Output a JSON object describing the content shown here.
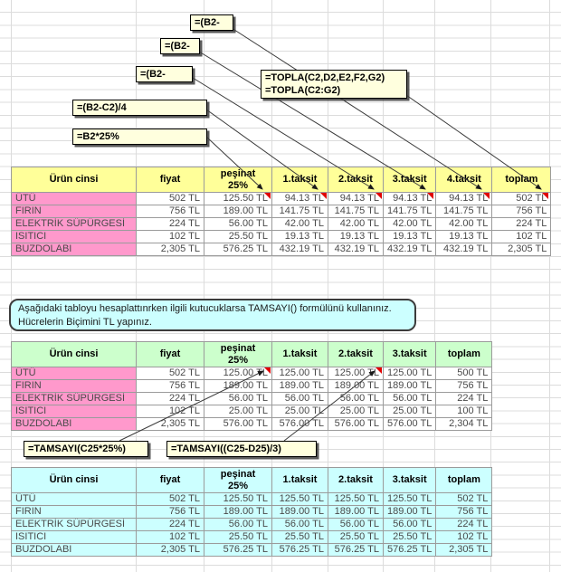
{
  "colors": {
    "table1_header_bg": "#FFFF99",
    "table2_header_bg": "#CCFFCC",
    "table3_bg": "#CCFFFF",
    "product_label_bg": "#FF99CC",
    "callout_bg": "#FFFFDE",
    "note_bg": "#CCFFFF",
    "comment_marker": "#E00000",
    "grid_line": "#DCDCDC"
  },
  "callouts": {
    "b2_minus_1": "=(B2-",
    "b2_minus_2": "=(B2-",
    "b2_minus_3": "=(B2-",
    "topla_line1": "=TOPLA(C2,D2,E2,F2,G2)",
    "topla_line2": "=TOPLA(C2:G2)",
    "taksit_formula": "=(B2-C2)/4",
    "pesinat_formula": "=B2*25%",
    "tamsayi_pesinat": "=TAMSAYI(C25*25%)",
    "tamsayi_taksit": "=TAMSAYI((C25-D25)/3)"
  },
  "note": {
    "text": "Aşağıdaki tabloyu hesaplattınrken ilgili kutucuklarsa TAMSAYI() formülünü kullanınız. Hücrelerin Biçimini TL yapınız."
  },
  "tables": [
    {
      "name": "installment-4-taksit",
      "header_bg": "#FFFF99",
      "label_bg": "#FF99CC",
      "body_bg": "#FFFFFF",
      "headers": [
        "Ürün cinsi",
        "fiyat",
        "peşinat\n25%",
        "1.taksit",
        "2.taksit",
        "3.taksit",
        "4.taksit",
        "toplam"
      ],
      "rows": [
        [
          "ÜTÜ",
          "502 TL",
          "125.50 TL",
          "94.13 TL",
          "94.13 TL",
          "94.13 TL",
          "94.13 TL",
          "502 TL"
        ],
        [
          "FIRIN",
          "756 TL",
          "189.00 TL",
          "141.75 TL",
          "141.75 TL",
          "141.75 TL",
          "141.75 TL",
          "756 TL"
        ],
        [
          "ELEKTRİK SÜPÜRGESİ",
          "224 TL",
          "56.00 TL",
          "42.00 TL",
          "42.00 TL",
          "42.00 TL",
          "42.00 TL",
          "224 TL"
        ],
        [
          "ISITICI",
          "102 TL",
          "25.50 TL",
          "19.13 TL",
          "19.13 TL",
          "19.13 TL",
          "19.13 TL",
          "102 TL"
        ],
        [
          "BUZDOLABI",
          "2,305 TL",
          "576.25 TL",
          "432.19 TL",
          "432.19 TL",
          "432.19 TL",
          "432.19 TL",
          "2,305 TL"
        ]
      ]
    },
    {
      "name": "installment-3-taksit-tamsayi",
      "header_bg": "#CCFFCC",
      "label_bg": "#FF99CC",
      "body_bg": "#FFFFFF",
      "headers": [
        "Ürün cinsi",
        "fiyat",
        "peşinat\n25%",
        "1.taksit",
        "2.taksit",
        "3.taksit",
        "toplam"
      ],
      "rows": [
        [
          "ÜTÜ",
          "502 TL",
          "125.00 TL",
          "125.00 TL",
          "125.00 TL",
          "125.00 TL",
          "500 TL"
        ],
        [
          "FIRIN",
          "756 TL",
          "189.00 TL",
          "189.00 TL",
          "189.00 TL",
          "189.00 TL",
          "756 TL"
        ],
        [
          "ELEKTRİK SÜPÜRGESİ",
          "224 TL",
          "56.00 TL",
          "56.00 TL",
          "56.00 TL",
          "56.00 TL",
          "224 TL"
        ],
        [
          "ISITICI",
          "102 TL",
          "25.00 TL",
          "25.00 TL",
          "25.00 TL",
          "25.00 TL",
          "100 TL"
        ],
        [
          "BUZDOLABI",
          "2,305 TL",
          "576.00 TL",
          "576.00 TL",
          "576.00 TL",
          "576.00 TL",
          "2,304 TL"
        ]
      ]
    },
    {
      "name": "installment-3-taksit-tl",
      "header_bg": "#CCFFFF",
      "label_bg": "#CCFFFF",
      "body_bg": "#CCFFFF",
      "headers": [
        "Ürün cinsi",
        "fiyat",
        "peşinat\n25%",
        "1.taksit",
        "2.taksit",
        "3.taksit",
        "toplam"
      ],
      "rows": [
        [
          "ÜTÜ",
          "502 TL",
          "125.50 TL",
          "125.50 TL",
          "125.50 TL",
          "125.50 TL",
          "502 TL"
        ],
        [
          "FIRIN",
          "756 TL",
          "189.00 TL",
          "189.00 TL",
          "189.00 TL",
          "189.00 TL",
          "756 TL"
        ],
        [
          "ELEKTRİK SÜPÜRGESİ",
          "224 TL",
          "56.00 TL",
          "56.00 TL",
          "56.00 TL",
          "56.00 TL",
          "224 TL"
        ],
        [
          "ISITICI",
          "102 TL",
          "25.50 TL",
          "25.50 TL",
          "25.50 TL",
          "25.50 TL",
          "102 TL"
        ],
        [
          "BUZDOLABI",
          "2,305 TL",
          "576.25 TL",
          "576.25 TL",
          "576.25 TL",
          "576.25 TL",
          "2,305 TL"
        ]
      ]
    }
  ]
}
